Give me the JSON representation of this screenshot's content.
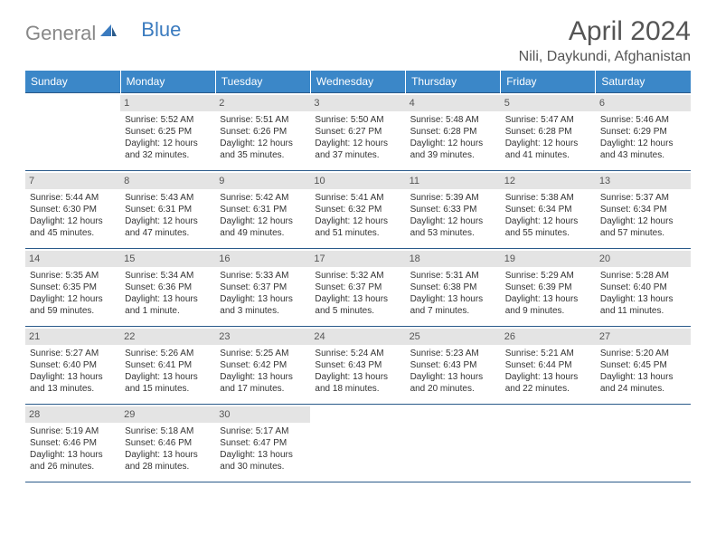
{
  "logo": {
    "gray": "General",
    "blue": "Blue"
  },
  "title": "April 2024",
  "location": "Nili, Daykundi, Afghanistan",
  "styling": {
    "header_bg": "#3b87c8",
    "header_fg": "#ffffff",
    "divider_color": "#2a5a8a",
    "daynum_bg": "#e4e4e4",
    "text_color": "#333333",
    "title_color": "#555555",
    "font_family": "Arial",
    "title_fontsize": 30,
    "location_fontsize": 16,
    "day_header_fontsize": 12,
    "cell_fontsize": 10
  },
  "day_headers": [
    "Sunday",
    "Monday",
    "Tuesday",
    "Wednesday",
    "Thursday",
    "Friday",
    "Saturday"
  ],
  "weeks": [
    [
      {
        "day": "",
        "sunrise": "",
        "sunset": "",
        "daylight1": "",
        "daylight2": ""
      },
      {
        "day": "1",
        "sunrise": "Sunrise: 5:52 AM",
        "sunset": "Sunset: 6:25 PM",
        "daylight1": "Daylight: 12 hours",
        "daylight2": "and 32 minutes."
      },
      {
        "day": "2",
        "sunrise": "Sunrise: 5:51 AM",
        "sunset": "Sunset: 6:26 PM",
        "daylight1": "Daylight: 12 hours",
        "daylight2": "and 35 minutes."
      },
      {
        "day": "3",
        "sunrise": "Sunrise: 5:50 AM",
        "sunset": "Sunset: 6:27 PM",
        "daylight1": "Daylight: 12 hours",
        "daylight2": "and 37 minutes."
      },
      {
        "day": "4",
        "sunrise": "Sunrise: 5:48 AM",
        "sunset": "Sunset: 6:28 PM",
        "daylight1": "Daylight: 12 hours",
        "daylight2": "and 39 minutes."
      },
      {
        "day": "5",
        "sunrise": "Sunrise: 5:47 AM",
        "sunset": "Sunset: 6:28 PM",
        "daylight1": "Daylight: 12 hours",
        "daylight2": "and 41 minutes."
      },
      {
        "day": "6",
        "sunrise": "Sunrise: 5:46 AM",
        "sunset": "Sunset: 6:29 PM",
        "daylight1": "Daylight: 12 hours",
        "daylight2": "and 43 minutes."
      }
    ],
    [
      {
        "day": "7",
        "sunrise": "Sunrise: 5:44 AM",
        "sunset": "Sunset: 6:30 PM",
        "daylight1": "Daylight: 12 hours",
        "daylight2": "and 45 minutes."
      },
      {
        "day": "8",
        "sunrise": "Sunrise: 5:43 AM",
        "sunset": "Sunset: 6:31 PM",
        "daylight1": "Daylight: 12 hours",
        "daylight2": "and 47 minutes."
      },
      {
        "day": "9",
        "sunrise": "Sunrise: 5:42 AM",
        "sunset": "Sunset: 6:31 PM",
        "daylight1": "Daylight: 12 hours",
        "daylight2": "and 49 minutes."
      },
      {
        "day": "10",
        "sunrise": "Sunrise: 5:41 AM",
        "sunset": "Sunset: 6:32 PM",
        "daylight1": "Daylight: 12 hours",
        "daylight2": "and 51 minutes."
      },
      {
        "day": "11",
        "sunrise": "Sunrise: 5:39 AM",
        "sunset": "Sunset: 6:33 PM",
        "daylight1": "Daylight: 12 hours",
        "daylight2": "and 53 minutes."
      },
      {
        "day": "12",
        "sunrise": "Sunrise: 5:38 AM",
        "sunset": "Sunset: 6:34 PM",
        "daylight1": "Daylight: 12 hours",
        "daylight2": "and 55 minutes."
      },
      {
        "day": "13",
        "sunrise": "Sunrise: 5:37 AM",
        "sunset": "Sunset: 6:34 PM",
        "daylight1": "Daylight: 12 hours",
        "daylight2": "and 57 minutes."
      }
    ],
    [
      {
        "day": "14",
        "sunrise": "Sunrise: 5:35 AM",
        "sunset": "Sunset: 6:35 PM",
        "daylight1": "Daylight: 12 hours",
        "daylight2": "and 59 minutes."
      },
      {
        "day": "15",
        "sunrise": "Sunrise: 5:34 AM",
        "sunset": "Sunset: 6:36 PM",
        "daylight1": "Daylight: 13 hours",
        "daylight2": "and 1 minute."
      },
      {
        "day": "16",
        "sunrise": "Sunrise: 5:33 AM",
        "sunset": "Sunset: 6:37 PM",
        "daylight1": "Daylight: 13 hours",
        "daylight2": "and 3 minutes."
      },
      {
        "day": "17",
        "sunrise": "Sunrise: 5:32 AM",
        "sunset": "Sunset: 6:37 PM",
        "daylight1": "Daylight: 13 hours",
        "daylight2": "and 5 minutes."
      },
      {
        "day": "18",
        "sunrise": "Sunrise: 5:31 AM",
        "sunset": "Sunset: 6:38 PM",
        "daylight1": "Daylight: 13 hours",
        "daylight2": "and 7 minutes."
      },
      {
        "day": "19",
        "sunrise": "Sunrise: 5:29 AM",
        "sunset": "Sunset: 6:39 PM",
        "daylight1": "Daylight: 13 hours",
        "daylight2": "and 9 minutes."
      },
      {
        "day": "20",
        "sunrise": "Sunrise: 5:28 AM",
        "sunset": "Sunset: 6:40 PM",
        "daylight1": "Daylight: 13 hours",
        "daylight2": "and 11 minutes."
      }
    ],
    [
      {
        "day": "21",
        "sunrise": "Sunrise: 5:27 AM",
        "sunset": "Sunset: 6:40 PM",
        "daylight1": "Daylight: 13 hours",
        "daylight2": "and 13 minutes."
      },
      {
        "day": "22",
        "sunrise": "Sunrise: 5:26 AM",
        "sunset": "Sunset: 6:41 PM",
        "daylight1": "Daylight: 13 hours",
        "daylight2": "and 15 minutes."
      },
      {
        "day": "23",
        "sunrise": "Sunrise: 5:25 AM",
        "sunset": "Sunset: 6:42 PM",
        "daylight1": "Daylight: 13 hours",
        "daylight2": "and 17 minutes."
      },
      {
        "day": "24",
        "sunrise": "Sunrise: 5:24 AM",
        "sunset": "Sunset: 6:43 PM",
        "daylight1": "Daylight: 13 hours",
        "daylight2": "and 18 minutes."
      },
      {
        "day": "25",
        "sunrise": "Sunrise: 5:23 AM",
        "sunset": "Sunset: 6:43 PM",
        "daylight1": "Daylight: 13 hours",
        "daylight2": "and 20 minutes."
      },
      {
        "day": "26",
        "sunrise": "Sunrise: 5:21 AM",
        "sunset": "Sunset: 6:44 PM",
        "daylight1": "Daylight: 13 hours",
        "daylight2": "and 22 minutes."
      },
      {
        "day": "27",
        "sunrise": "Sunrise: 5:20 AM",
        "sunset": "Sunset: 6:45 PM",
        "daylight1": "Daylight: 13 hours",
        "daylight2": "and 24 minutes."
      }
    ],
    [
      {
        "day": "28",
        "sunrise": "Sunrise: 5:19 AM",
        "sunset": "Sunset: 6:46 PM",
        "daylight1": "Daylight: 13 hours",
        "daylight2": "and 26 minutes."
      },
      {
        "day": "29",
        "sunrise": "Sunrise: 5:18 AM",
        "sunset": "Sunset: 6:46 PM",
        "daylight1": "Daylight: 13 hours",
        "daylight2": "and 28 minutes."
      },
      {
        "day": "30",
        "sunrise": "Sunrise: 5:17 AM",
        "sunset": "Sunset: 6:47 PM",
        "daylight1": "Daylight: 13 hours",
        "daylight2": "and 30 minutes."
      },
      {
        "day": "",
        "sunrise": "",
        "sunset": "",
        "daylight1": "",
        "daylight2": ""
      },
      {
        "day": "",
        "sunrise": "",
        "sunset": "",
        "daylight1": "",
        "daylight2": ""
      },
      {
        "day": "",
        "sunrise": "",
        "sunset": "",
        "daylight1": "",
        "daylight2": ""
      },
      {
        "day": "",
        "sunrise": "",
        "sunset": "",
        "daylight1": "",
        "daylight2": ""
      }
    ]
  ]
}
